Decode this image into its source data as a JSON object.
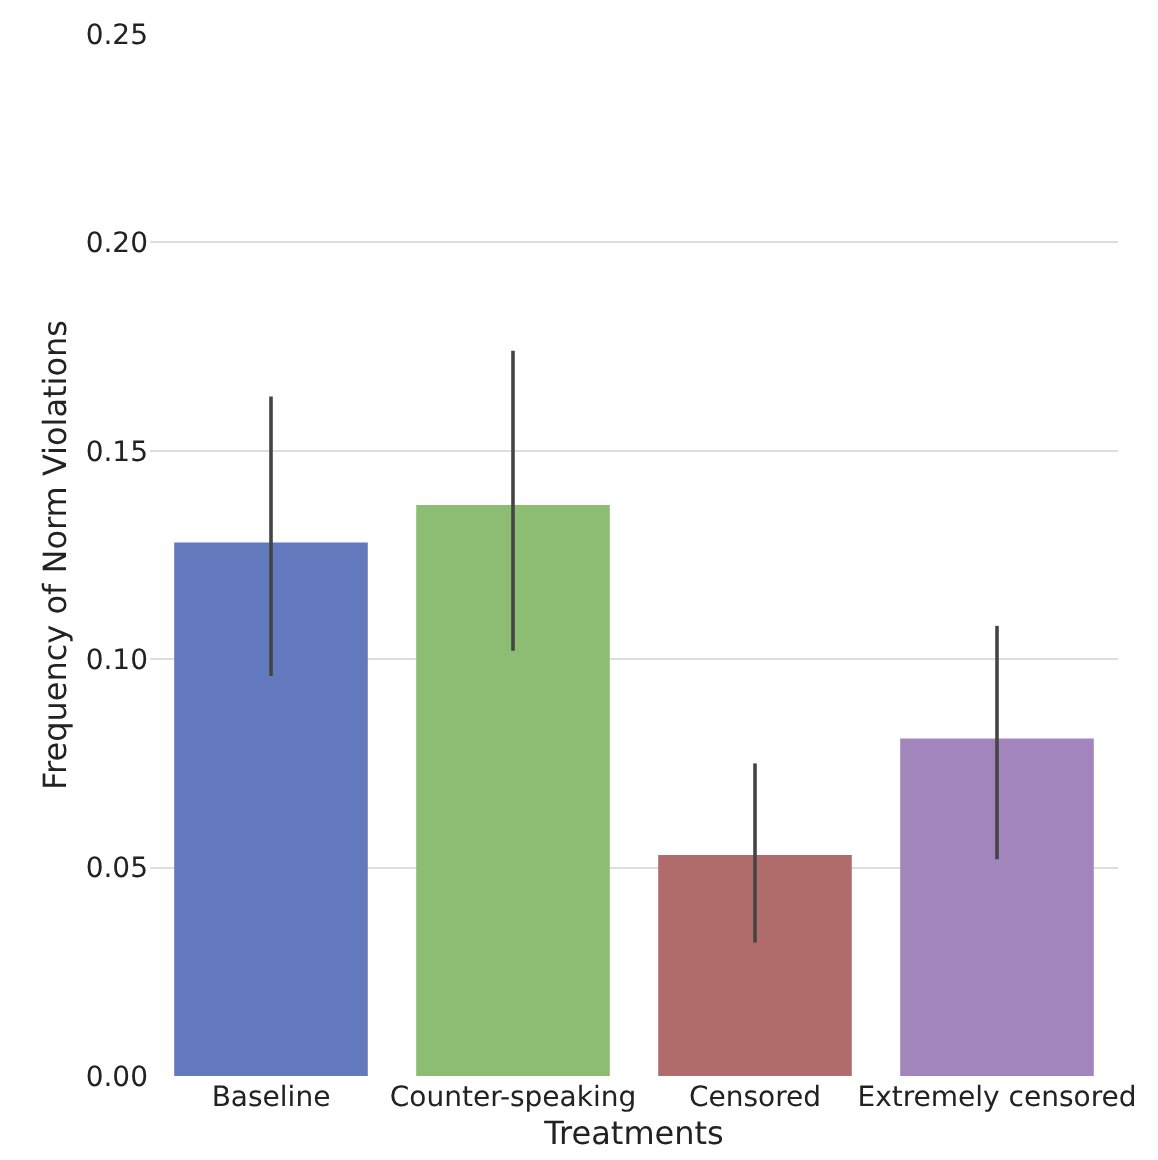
{
  "chart_data": {
    "type": "bar",
    "xlabel": "Treatments",
    "ylabel": "Frequency of Norm Violations",
    "categories": [
      "Baseline",
      "Counter-speaking",
      "Censored",
      "Extremely censored"
    ],
    "values": [
      0.128,
      0.137,
      0.053,
      0.081
    ],
    "colors": [
      "#6279bd",
      "#8dbd72",
      "#b06c6a",
      "#a385bd"
    ],
    "errors": [
      [
        0.096,
        0.163
      ],
      [
        0.102,
        0.174
      ],
      [
        0.032,
        0.075
      ],
      [
        0.052,
        0.108
      ]
    ],
    "ylim": [
      0,
      0.25
    ],
    "yticks": [
      {
        "value": 0,
        "label": "0.00"
      },
      {
        "value": 0.05,
        "label": "0.05"
      },
      {
        "value": 0.1,
        "label": "0.10"
      },
      {
        "value": 0.15,
        "label": "0.15"
      },
      {
        "value": 0.2,
        "label": "0.20"
      },
      {
        "value": 0.25,
        "label": "0.25"
      }
    ],
    "grid": "y"
  }
}
